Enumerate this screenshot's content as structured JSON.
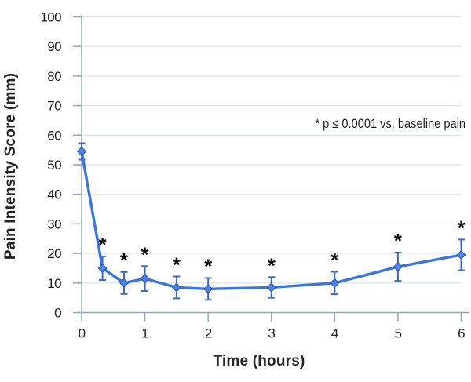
{
  "chart_data": {
    "type": "line",
    "title": "",
    "xlabel": "Time (hours)",
    "ylabel": "Pain Intensity Score (mm)",
    "annotation": "* p ≤ 0.0001 vs. baseline pain",
    "significance_marker": "*",
    "x": [
      0,
      0.33,
      0.67,
      1,
      1.5,
      2,
      3,
      4,
      5,
      6
    ],
    "series": [
      {
        "name": "Pain Intensity",
        "values": [
          54.5,
          15,
          10,
          11.5,
          8.5,
          8,
          8.5,
          10,
          15.5,
          19.5
        ],
        "y_error": [
          2.8,
          4,
          3.7,
          4.2,
          3.7,
          3.7,
          3.5,
          3.8,
          4.8,
          5.2
        ],
        "significant": [
          false,
          true,
          true,
          true,
          true,
          true,
          true,
          true,
          true,
          true
        ]
      }
    ],
    "xticks": [
      0,
      1,
      2,
      3,
      4,
      5,
      6
    ],
    "yticks": [
      0,
      10,
      20,
      30,
      40,
      50,
      60,
      70,
      80,
      90,
      100
    ],
    "xlim": [
      0,
      6
    ],
    "ylim": [
      0,
      100
    ],
    "grid": "horizontal-only",
    "legend": "none",
    "marker_shape": "diamond",
    "colors": {
      "line": "#3a75dc",
      "marker_fill": "#4d84e6",
      "marker_edge": "#2a58b0",
      "error_bar": "#3a68c8",
      "grid": "#dfe7e8",
      "axis": "#94a8aa",
      "text": "#1d1d1b"
    }
  }
}
